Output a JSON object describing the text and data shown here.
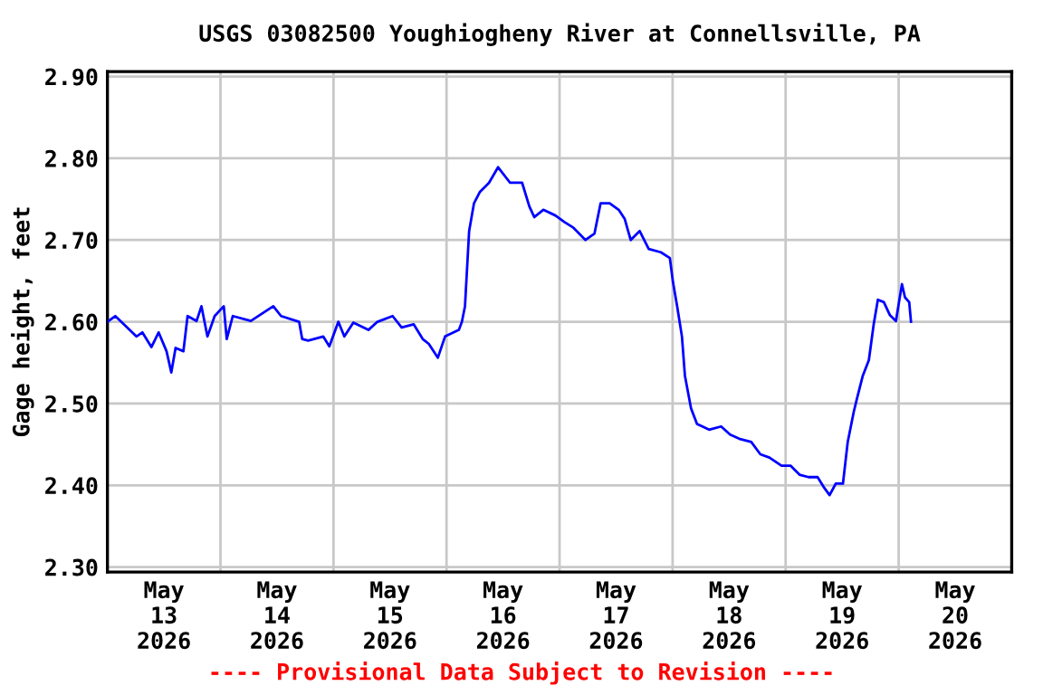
{
  "chart_data": {
    "type": "line",
    "title": "USGS 03082500 Youghiogheny River at Connellsville, PA",
    "ylabel": "Gage height, feet",
    "annotations": [
      "---- Provisional Data Subject to Revision ----"
    ],
    "x": [
      "2026-05-13T00:00",
      "2026-05-13T01:40",
      "2026-05-13T04:13",
      "2026-05-13T06:09",
      "2026-05-13T07:25",
      "2026-05-13T09:20",
      "2026-05-13T10:52",
      "2026-05-13T12:33",
      "2026-05-13T13:34",
      "2026-05-13T14:28",
      "2026-05-13T16:08",
      "2026-05-13T17:01",
      "2026-05-13T18:56",
      "2026-05-13T19:58",
      "2026-05-13T21:14",
      "2026-05-13T22:46",
      "2026-05-14T00:42",
      "2026-05-14T01:20",
      "2026-05-14T02:37",
      "2026-05-14T06:27",
      "2026-05-14T11:13",
      "2026-05-14T12:52",
      "2026-05-14T16:42",
      "2026-05-14T17:21",
      "2026-05-14T18:38",
      "2026-05-14T21:49",
      "2026-05-14T23:07",
      "2026-05-15T01:02",
      "2026-05-15T02:18",
      "2026-05-15T04:13",
      "2026-05-15T07:25",
      "2026-05-15T09:20",
      "2026-05-15T12:33",
      "2026-05-15T14:28",
      "2026-05-15T17:01",
      "2026-05-15T18:56",
      "2026-05-15T20:14",
      "2026-05-15T22:09",
      "2026-05-15T23:41",
      "2026-05-16T02:37",
      "2026-05-16T03:16",
      "2026-05-16T03:55",
      "2026-05-16T04:48",
      "2026-05-16T05:50",
      "2026-05-16T07:06",
      "2026-05-16T09:01",
      "2026-05-16T10:57",
      "2026-05-16T13:30",
      "2026-05-16T16:03",
      "2026-05-16T17:35",
      "2026-05-16T18:38",
      "2026-05-16T20:33",
      "2026-05-16T23:07",
      "2026-05-17T01:02",
      "2026-05-17T02:57",
      "2026-05-17T05:30",
      "2026-05-17T07:25",
      "2026-05-17T08:43",
      "2026-05-17T10:38",
      "2026-05-17T12:33",
      "2026-05-17T13:49",
      "2026-05-17T15:06",
      "2026-05-17T17:01",
      "2026-05-17T18:56",
      "2026-05-17T21:30",
      "2026-05-17T23:25",
      "2026-05-18T00:04",
      "2026-05-18T00:58",
      "2026-05-18T01:59",
      "2026-05-18T02:37",
      "2026-05-18T03:55",
      "2026-05-18T05:11",
      "2026-05-18T07:45",
      "2026-05-18T10:18",
      "2026-05-18T12:13",
      "2026-05-18T14:08",
      "2026-05-18T16:42",
      "2026-05-18T18:38",
      "2026-05-18T20:33",
      "2026-05-18T23:07",
      "2026-05-19T01:02",
      "2026-05-19T02:57",
      "2026-05-19T04:52",
      "2026-05-19T06:47",
      "2026-05-19T08:04",
      "2026-05-19T09:20",
      "2026-05-19T10:38",
      "2026-05-19T12:10",
      "2026-05-19T13:11",
      "2026-05-19T14:28",
      "2026-05-19T15:06",
      "2026-05-19T16:23",
      "2026-05-19T17:40",
      "2026-05-19T18:42",
      "2026-05-19T19:35",
      "2026-05-19T20:51",
      "2026-05-19T22:09",
      "2026-05-19T23:25",
      "2026-05-20T00:04",
      "2026-05-20T00:42",
      "2026-05-20T01:20",
      "2026-05-20T02:14",
      "2026-05-20T02:37"
    ],
    "series": [
      {
        "color": "#0000ff",
        "values": [
          2.6,
          2.607,
          2.593,
          2.582,
          2.587,
          2.569,
          2.587,
          2.564,
          2.538,
          2.568,
          2.564,
          2.607,
          2.601,
          2.619,
          2.582,
          2.607,
          2.619,
          2.579,
          2.607,
          2.601,
          2.619,
          2.607,
          2.6,
          2.579,
          2.577,
          2.582,
          2.57,
          2.6,
          2.582,
          2.599,
          2.59,
          2.6,
          2.607,
          2.593,
          2.597,
          2.579,
          2.573,
          2.556,
          2.582,
          2.59,
          2.6,
          2.619,
          2.711,
          2.745,
          2.759,
          2.77,
          2.789,
          2.77,
          2.77,
          2.741,
          2.728,
          2.737,
          2.73,
          2.722,
          2.715,
          2.7,
          2.708,
          2.745,
          2.745,
          2.737,
          2.726,
          2.7,
          2.711,
          2.689,
          2.685,
          2.678,
          2.649,
          2.619,
          2.582,
          2.534,
          2.494,
          2.475,
          2.468,
          2.472,
          2.462,
          2.457,
          2.453,
          2.438,
          2.434,
          2.424,
          2.424,
          2.413,
          2.41,
          2.41,
          2.398,
          2.388,
          2.402,
          2.402,
          2.453,
          2.49,
          2.505,
          2.534,
          2.553,
          2.597,
          2.627,
          2.624,
          2.608,
          2.601,
          2.624,
          2.646,
          2.63,
          2.624,
          2.6
        ]
      }
    ],
    "xlim": [
      "2026-05-13",
      "2026-05-21"
    ],
    "xticks": [
      {
        "value": "2026-05-13T12:00",
        "label": "May\n13\n2026"
      },
      {
        "value": "2026-05-14T12:00",
        "label": "May\n14\n2026"
      },
      {
        "value": "2026-05-15T12:00",
        "label": "May\n15\n2026"
      },
      {
        "value": "2026-05-16T12:00",
        "label": "May\n16\n2026"
      },
      {
        "value": "2026-05-17T12:00",
        "label": "May\n17\n2026"
      },
      {
        "value": "2026-05-18T12:00",
        "label": "May\n18\n2026"
      },
      {
        "value": "2026-05-19T12:00",
        "label": "May\n19\n2026"
      },
      {
        "value": "2026-05-20T12:00",
        "label": "May\n20\n2026"
      },
      {
        "value": "2026-05-14",
        "label": null
      },
      {
        "value": "2026-05-15",
        "label": null
      },
      {
        "value": "2026-05-16",
        "label": null
      },
      {
        "value": "2026-05-17",
        "label": null
      },
      {
        "value": "2026-05-18",
        "label": null
      },
      {
        "value": "2026-05-19",
        "label": null
      },
      {
        "value": "2026-05-20",
        "label": null
      }
    ],
    "ylim": [
      2.294,
      2.906
    ],
    "yticks": [
      {
        "value": 2.3,
        "label": "2.30"
      },
      {
        "value": 2.4,
        "label": "2.40"
      },
      {
        "value": 2.5,
        "label": "2.50"
      },
      {
        "value": 2.6,
        "label": "2.60"
      },
      {
        "value": 2.7,
        "label": "2.70"
      },
      {
        "value": 2.8,
        "label": "2.80"
      },
      {
        "value": 2.9,
        "label": "2.90"
      }
    ],
    "grid": true,
    "legend": false,
    "marker": "none",
    "line_style": "solid"
  }
}
